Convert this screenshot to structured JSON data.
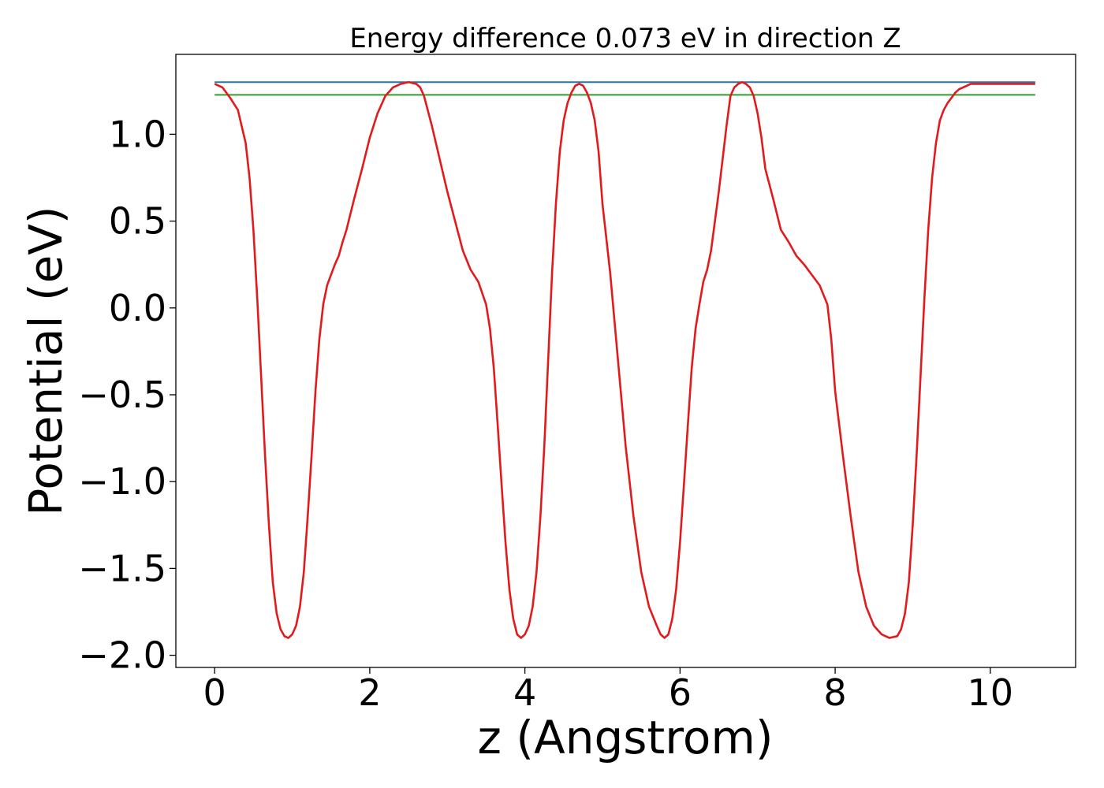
{
  "chart_data": {
    "type": "line",
    "title": "Energy difference 0.073 eV in direction Z",
    "xlabel": "z (Angstrom)",
    "ylabel": "Potential (eV)",
    "xlim": [
      -0.5,
      11.1
    ],
    "ylim": [
      -2.07,
      1.46
    ],
    "xticks": [
      0,
      2,
      4,
      6,
      8,
      10
    ],
    "xtick_labels": [
      "0",
      "2",
      "4",
      "6",
      "8",
      "10"
    ],
    "yticks": [
      -2.0,
      -1.5,
      -1.0,
      -0.5,
      0.0,
      0.5,
      1.0
    ],
    "ytick_labels": [
      "−2.0",
      "−1.5",
      "−1.0",
      "−0.5",
      "0.0",
      "0.5",
      "1.0"
    ],
    "grid": false,
    "legend": "none",
    "series": [
      {
        "color": "#1f77b4",
        "x": [
          0,
          10.58
        ],
        "y": [
          1.3,
          1.3
        ]
      },
      {
        "color": "#2ca02c",
        "x": [
          0,
          10.58
        ],
        "y": [
          1.227,
          1.227
        ]
      },
      {
        "color": "#e31a1c",
        "x": [
          0.0,
          0.1,
          0.2,
          0.3,
          0.4,
          0.45,
          0.5,
          0.55,
          0.6,
          0.65,
          0.7,
          0.75,
          0.8,
          0.85,
          0.9,
          0.95,
          1.0,
          1.05,
          1.1,
          1.15,
          1.2,
          1.25,
          1.3,
          1.35,
          1.4,
          1.45,
          1.5,
          1.55,
          1.6,
          1.65,
          1.7,
          1.8,
          1.9,
          2.0,
          2.1,
          2.2,
          2.3,
          2.4,
          2.5,
          2.6,
          2.65,
          2.7,
          2.8,
          2.9,
          3.0,
          3.1,
          3.2,
          3.3,
          3.4,
          3.5,
          3.55,
          3.6,
          3.65,
          3.7,
          3.75,
          3.8,
          3.85,
          3.9,
          3.95,
          4.0,
          4.05,
          4.1,
          4.15,
          4.2,
          4.25,
          4.3,
          4.35,
          4.4,
          4.45,
          4.5,
          4.55,
          4.6,
          4.65,
          4.7,
          4.75,
          4.8,
          4.85,
          4.9,
          4.95,
          5.0,
          5.1,
          5.2,
          5.3,
          5.4,
          5.5,
          5.6,
          5.7,
          5.75,
          5.8,
          5.85,
          5.9,
          5.95,
          6.0,
          6.05,
          6.1,
          6.15,
          6.2,
          6.25,
          6.3,
          6.35,
          6.4,
          6.45,
          6.5,
          6.55,
          6.6,
          6.65,
          6.7,
          6.75,
          6.8,
          6.85,
          6.9,
          6.95,
          7.0,
          7.05,
          7.1,
          7.2,
          7.3,
          7.4,
          7.5,
          7.6,
          7.7,
          7.8,
          7.9,
          7.95,
          8.0,
          8.1,
          8.2,
          8.3,
          8.4,
          8.5,
          8.6,
          8.7,
          8.8,
          8.85,
          8.9,
          8.95,
          9.0,
          9.05,
          9.1,
          9.15,
          9.2,
          9.25,
          9.3,
          9.35,
          9.4,
          9.45,
          9.5,
          9.55,
          9.6,
          9.65,
          9.7,
          9.75,
          9.8,
          9.85,
          9.9,
          9.95,
          10.0,
          10.05,
          10.1,
          10.15,
          10.2,
          10.3,
          10.4,
          10.5,
          10.58
        ],
        "y": [
          1.29,
          1.27,
          1.21,
          1.14,
          0.95,
          0.75,
          0.45,
          0.05,
          -0.4,
          -0.85,
          -1.25,
          -1.58,
          -1.76,
          -1.85,
          -1.89,
          -1.9,
          -1.88,
          -1.83,
          -1.72,
          -1.52,
          -1.2,
          -0.85,
          -0.48,
          -0.18,
          0.02,
          0.13,
          0.19,
          0.25,
          0.3,
          0.38,
          0.45,
          0.63,
          0.8,
          0.98,
          1.12,
          1.22,
          1.27,
          1.29,
          1.3,
          1.29,
          1.27,
          1.22,
          1.05,
          0.86,
          0.67,
          0.5,
          0.33,
          0.22,
          0.15,
          0.02,
          -0.12,
          -0.35,
          -0.68,
          -1.02,
          -1.35,
          -1.62,
          -1.79,
          -1.88,
          -1.9,
          -1.88,
          -1.83,
          -1.72,
          -1.52,
          -1.2,
          -0.8,
          -0.3,
          0.2,
          0.6,
          0.9,
          1.08,
          1.18,
          1.24,
          1.28,
          1.29,
          1.28,
          1.24,
          1.18,
          1.08,
          0.9,
          0.6,
          0.2,
          -0.3,
          -0.8,
          -1.2,
          -1.52,
          -1.72,
          -1.83,
          -1.88,
          -1.9,
          -1.88,
          -1.79,
          -1.62,
          -1.35,
          -1.02,
          -0.68,
          -0.35,
          -0.12,
          0.02,
          0.15,
          0.22,
          0.33,
          0.5,
          0.67,
          0.86,
          1.05,
          1.22,
          1.27,
          1.29,
          1.3,
          1.29,
          1.27,
          1.22,
          1.12,
          0.98,
          0.8,
          0.63,
          0.45,
          0.38,
          0.3,
          0.25,
          0.19,
          0.13,
          0.02,
          -0.18,
          -0.48,
          -0.85,
          -1.2,
          -1.52,
          -1.72,
          -1.83,
          -1.88,
          -1.9,
          -1.89,
          -1.85,
          -1.76,
          -1.58,
          -1.25,
          -0.85,
          -0.4,
          0.05,
          0.45,
          0.75,
          0.95,
          1.08,
          1.14,
          1.18,
          1.21,
          1.24,
          1.26,
          1.27,
          1.28,
          1.29,
          1.29,
          1.29,
          1.29,
          1.29,
          1.29,
          1.29,
          1.29,
          1.29,
          1.29,
          1.29,
          1.29,
          1.29,
          1.29
        ]
      }
    ]
  }
}
